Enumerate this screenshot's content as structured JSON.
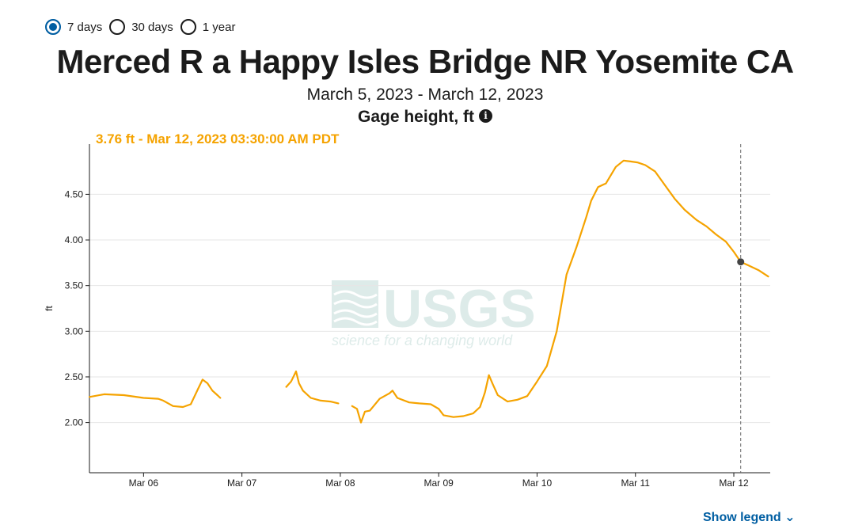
{
  "period_options": [
    {
      "label": "7 days",
      "selected": true
    },
    {
      "label": "30 days",
      "selected": false
    },
    {
      "label": "1 year",
      "selected": false
    }
  ],
  "title": "Merced R a Happy Isles Bridge NR Yosemite CA",
  "date_range": "March 5, 2023 - March 12, 2023",
  "parameter": "Gage height, ft",
  "tooltip_text": "3.76 ft - Mar 12, 2023 03:30:00 AM PDT",
  "watermark": {
    "name": "USGS",
    "tagline": "science for a changing world"
  },
  "show_legend_label": "Show legend",
  "colors": {
    "series": "#f5a300",
    "accent": "#005ea2",
    "axis": "#1b1b1b"
  },
  "chart_data": {
    "type": "line",
    "ylabel": "ft",
    "xlabel": "",
    "ylim": [
      1.45,
      5.05
    ],
    "yticks": [
      2.0,
      2.5,
      3.0,
      3.5,
      4.0,
      4.5
    ],
    "ytick_labels": [
      "2.00",
      "2.50",
      "3.00",
      "3.50",
      "4.00",
      "4.50"
    ],
    "xlim_days": [
      5.45,
      12.37
    ],
    "xticks": [
      {
        "day": 6,
        "label": "Mar 06"
      },
      {
        "day": 7,
        "label": "Mar 07"
      },
      {
        "day": 8,
        "label": "Mar 08"
      },
      {
        "day": 9,
        "label": "Mar 09"
      },
      {
        "day": 10,
        "label": "Mar 10"
      },
      {
        "day": 11,
        "label": "Mar 11"
      },
      {
        "day": 12,
        "label": "Mar 12"
      }
    ],
    "grid": true,
    "cursor": {
      "day": 12.07,
      "value": 3.76
    },
    "series": [
      {
        "segments": [
          [
            [
              5.45,
              2.28
            ],
            [
              5.6,
              2.31
            ],
            [
              5.8,
              2.3
            ],
            [
              6.0,
              2.27
            ],
            [
              6.15,
              2.26
            ],
            [
              6.2,
              2.24
            ],
            [
              6.3,
              2.18
            ],
            [
              6.4,
              2.17
            ],
            [
              6.48,
              2.2
            ],
            [
              6.55,
              2.36
            ],
            [
              6.6,
              2.47
            ],
            [
              6.65,
              2.43
            ],
            [
              6.7,
              2.35
            ],
            [
              6.75,
              2.3
            ],
            [
              6.78,
              2.27
            ]
          ],
          [
            [
              7.45,
              2.39
            ],
            [
              7.5,
              2.45
            ],
            [
              7.55,
              2.56
            ],
            [
              7.58,
              2.43
            ],
            [
              7.62,
              2.35
            ],
            [
              7.7,
              2.27
            ],
            [
              7.8,
              2.24
            ],
            [
              7.9,
              2.23
            ],
            [
              7.98,
              2.21
            ]
          ],
          [
            [
              8.12,
              2.18
            ],
            [
              8.17,
              2.15
            ],
            [
              8.21,
              2.0
            ],
            [
              8.25,
              2.12
            ],
            [
              8.3,
              2.13
            ],
            [
              8.4,
              2.26
            ],
            [
              8.5,
              2.32
            ],
            [
              8.53,
              2.35
            ],
            [
              8.58,
              2.27
            ],
            [
              8.7,
              2.22
            ],
            [
              8.8,
              2.21
            ],
            [
              8.92,
              2.2
            ],
            [
              9.0,
              2.15
            ],
            [
              9.05,
              2.08
            ],
            [
              9.15,
              2.06
            ],
            [
              9.25,
              2.07
            ],
            [
              9.35,
              2.1
            ],
            [
              9.42,
              2.17
            ],
            [
              9.47,
              2.33
            ],
            [
              9.51,
              2.52
            ],
            [
              9.55,
              2.42
            ],
            [
              9.6,
              2.3
            ],
            [
              9.7,
              2.23
            ],
            [
              9.8,
              2.25
            ],
            [
              9.9,
              2.29
            ],
            [
              10.0,
              2.45
            ],
            [
              10.1,
              2.62
            ],
            [
              10.2,
              3.0
            ],
            [
              10.3,
              3.62
            ],
            [
              10.4,
              3.92
            ],
            [
              10.5,
              4.25
            ],
            [
              10.55,
              4.43
            ],
            [
              10.62,
              4.58
            ],
            [
              10.7,
              4.62
            ],
            [
              10.8,
              4.8
            ],
            [
              10.88,
              4.87
            ],
            [
              10.95,
              4.86
            ],
            [
              11.02,
              4.85
            ],
            [
              11.1,
              4.82
            ],
            [
              11.2,
              4.75
            ],
            [
              11.3,
              4.6
            ],
            [
              11.4,
              4.45
            ],
            [
              11.5,
              4.33
            ],
            [
              11.62,
              4.22
            ],
            [
              11.72,
              4.15
            ],
            [
              11.82,
              4.06
            ],
            [
              11.92,
              3.98
            ],
            [
              12.0,
              3.87
            ],
            [
              12.07,
              3.76
            ],
            [
              12.15,
              3.72
            ],
            [
              12.25,
              3.67
            ],
            [
              12.35,
              3.6
            ]
          ]
        ]
      }
    ]
  }
}
